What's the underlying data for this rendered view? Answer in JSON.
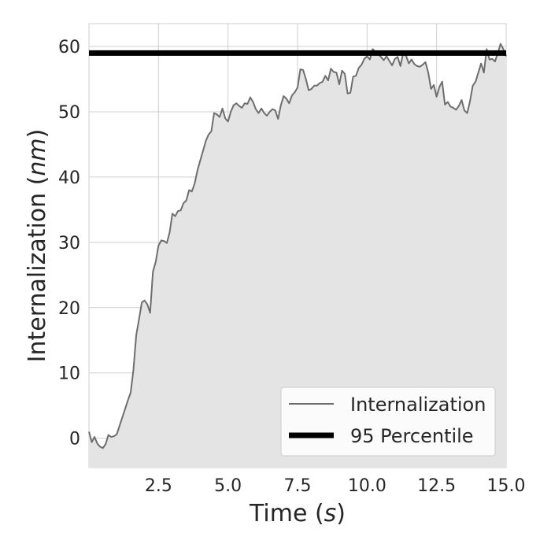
{
  "chart_data": {
    "type": "area",
    "xlabel": {
      "prefix": "Time (",
      "var": "s",
      "suffix": ")"
    },
    "ylabel": {
      "prefix": "Internalization (",
      "var": "nm",
      "suffix": ")"
    },
    "xlim": [
      0.0,
      15.0
    ],
    "ylim": [
      -4.5,
      63.5
    ],
    "xticks": [
      "2.5",
      "5.0",
      "7.5",
      "10.0",
      "12.5",
      "15.0"
    ],
    "yticks": [
      "0",
      "10",
      "20",
      "30",
      "40",
      "50",
      "60"
    ],
    "grid": true,
    "legend_position": "lower-right",
    "series": [
      {
        "name": "Internalization",
        "color": "#6e6e6e",
        "fill": "#e4e4e4",
        "points": [
          [
            0.0,
            1.0
          ],
          [
            0.1,
            -0.6
          ],
          [
            0.2,
            0.2
          ],
          [
            0.3,
            -0.8
          ],
          [
            0.4,
            -1.3
          ],
          [
            0.5,
            -1.5
          ],
          [
            0.6,
            -0.9
          ],
          [
            0.7,
            0.5
          ],
          [
            0.8,
            0.2
          ],
          [
            0.9,
            0.3
          ],
          [
            1.0,
            0.6
          ],
          [
            1.2,
            3.2
          ],
          [
            1.4,
            5.8
          ],
          [
            1.5,
            7.0
          ],
          [
            1.6,
            10.5
          ],
          [
            1.7,
            15.8
          ],
          [
            1.8,
            18.2
          ],
          [
            1.9,
            20.8
          ],
          [
            2.0,
            21.1
          ],
          [
            2.1,
            20.5
          ],
          [
            2.2,
            19.2
          ],
          [
            2.3,
            25.5
          ],
          [
            2.4,
            27.0
          ],
          [
            2.5,
            29.5
          ],
          [
            2.6,
            30.3
          ],
          [
            2.7,
            30.2
          ],
          [
            2.8,
            29.9
          ],
          [
            2.9,
            31.5
          ],
          [
            3.0,
            34.4
          ],
          [
            3.1,
            34.0
          ],
          [
            3.2,
            34.8
          ],
          [
            3.3,
            34.9
          ],
          [
            3.4,
            36.0
          ],
          [
            3.5,
            36.4
          ],
          [
            3.6,
            38.0
          ],
          [
            3.7,
            37.8
          ],
          [
            3.8,
            39.0
          ],
          [
            3.9,
            41.0
          ],
          [
            4.0,
            42.5
          ],
          [
            4.1,
            44.0
          ],
          [
            4.2,
            45.5
          ],
          [
            4.3,
            46.5
          ],
          [
            4.4,
            47.0
          ],
          [
            4.5,
            49.8
          ],
          [
            4.6,
            49.6
          ],
          [
            4.7,
            49.2
          ],
          [
            4.8,
            50.5
          ],
          [
            4.9,
            49.0
          ],
          [
            5.0,
            48.5
          ],
          [
            5.1,
            50.0
          ],
          [
            5.2,
            51.0
          ],
          [
            5.3,
            51.3
          ],
          [
            5.4,
            50.9
          ],
          [
            5.5,
            50.6
          ],
          [
            5.6,
            51.3
          ],
          [
            5.7,
            51.2
          ],
          [
            5.8,
            52.2
          ],
          [
            5.9,
            51.5
          ],
          [
            6.0,
            50.4
          ],
          [
            6.1,
            49.8
          ],
          [
            6.2,
            50.5
          ],
          [
            6.3,
            49.8
          ],
          [
            6.4,
            49.4
          ],
          [
            6.5,
            50.0
          ],
          [
            6.6,
            50.4
          ],
          [
            6.7,
            50.2
          ],
          [
            6.8,
            48.9
          ],
          [
            6.9,
            51.0
          ],
          [
            7.0,
            52.4
          ],
          [
            7.1,
            52.0
          ],
          [
            7.2,
            51.3
          ],
          [
            7.3,
            52.5
          ],
          [
            7.4,
            53.0
          ],
          [
            7.5,
            53.7
          ],
          [
            7.6,
            56.5
          ],
          [
            7.7,
            56.4
          ],
          [
            7.8,
            55.0
          ],
          [
            7.9,
            53.3
          ],
          [
            8.0,
            53.5
          ],
          [
            8.1,
            54.0
          ],
          [
            8.2,
            54.0
          ],
          [
            8.3,
            54.4
          ],
          [
            8.4,
            54.6
          ],
          [
            8.5,
            55.5
          ],
          [
            8.6,
            54.8
          ],
          [
            8.7,
            56.6
          ],
          [
            8.8,
            56.1
          ],
          [
            8.9,
            56.0
          ],
          [
            9.0,
            54.2
          ],
          [
            9.1,
            56.3
          ],
          [
            9.2,
            55.8
          ],
          [
            9.3,
            52.8
          ],
          [
            9.4,
            52.9
          ],
          [
            9.5,
            55.4
          ],
          [
            9.6,
            55.5
          ],
          [
            9.7,
            56.7
          ],
          [
            9.8,
            57.2
          ],
          [
            9.9,
            58.1
          ],
          [
            10.0,
            58.5
          ],
          [
            10.1,
            58.0
          ],
          [
            10.2,
            59.6
          ],
          [
            10.3,
            59.2
          ],
          [
            10.4,
            58.8
          ],
          [
            10.5,
            58.4
          ],
          [
            10.6,
            57.9
          ],
          [
            10.7,
            58.5
          ],
          [
            10.8,
            57.8
          ],
          [
            10.9,
            57.1
          ],
          [
            11.0,
            58.1
          ],
          [
            11.1,
            58.4
          ],
          [
            11.2,
            57.0
          ],
          [
            11.3,
            59.0
          ],
          [
            11.4,
            58.6
          ],
          [
            11.5,
            57.4
          ],
          [
            11.6,
            58.0
          ],
          [
            11.7,
            57.3
          ],
          [
            11.8,
            57.0
          ],
          [
            11.9,
            56.9
          ],
          [
            12.0,
            57.2
          ],
          [
            12.1,
            57.6
          ],
          [
            12.2,
            56.0
          ],
          [
            12.3,
            53.5
          ],
          [
            12.4,
            54.1
          ],
          [
            12.5,
            52.3
          ],
          [
            12.6,
            53.8
          ],
          [
            12.7,
            54.6
          ],
          [
            12.8,
            51.1
          ],
          [
            12.9,
            51.5
          ],
          [
            13.0,
            50.8
          ],
          [
            13.1,
            50.6
          ],
          [
            13.2,
            50.3
          ],
          [
            13.3,
            50.9
          ],
          [
            13.4,
            51.8
          ],
          [
            13.5,
            50.2
          ],
          [
            13.6,
            49.8
          ],
          [
            13.7,
            51.6
          ],
          [
            13.8,
            54.0
          ],
          [
            13.9,
            54.6
          ],
          [
            14.0,
            56.0
          ],
          [
            14.1,
            57.4
          ],
          [
            14.2,
            56.0
          ],
          [
            14.3,
            59.6
          ],
          [
            14.4,
            58.0
          ],
          [
            14.5,
            58.1
          ],
          [
            14.6,
            57.7
          ],
          [
            14.7,
            59.0
          ],
          [
            14.8,
            60.4
          ],
          [
            14.9,
            59.6
          ],
          [
            15.0,
            58.5
          ]
        ]
      },
      {
        "name": "95 Percentile",
        "color": "#000000",
        "type": "hline",
        "y": 59.0
      }
    ]
  }
}
